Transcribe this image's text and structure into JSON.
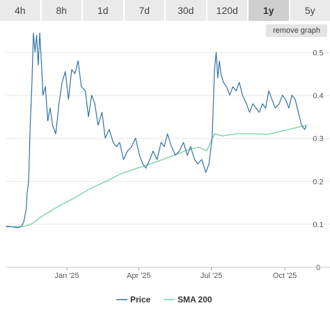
{
  "range_tabs": [
    {
      "label": "4h",
      "active": false
    },
    {
      "label": "8h",
      "active": false
    },
    {
      "label": "1d",
      "active": false
    },
    {
      "label": "7d",
      "active": false
    },
    {
      "label": "30d",
      "active": false
    },
    {
      "label": "120d",
      "active": false
    },
    {
      "label": "1y",
      "active": true
    },
    {
      "label": "5y",
      "active": false
    }
  ],
  "remove_graph_label": "remove graph",
  "colors": {
    "price": "#2f6fa3",
    "sma": "#6fd39a",
    "grid": "#e6e6e6",
    "tab_bg": "#eaeaea",
    "tab_active_bg": "#cfcfcf"
  },
  "chart_data": {
    "type": "line",
    "title": "",
    "xlabel": "",
    "ylabel": "",
    "ylim": [
      0,
      0.5
    ],
    "y_ticks": [
      0,
      0.1,
      0.2,
      0.3,
      0.4,
      0.5
    ],
    "y_tick_labels": [
      "0",
      "0.1",
      "0.2",
      "0.3",
      "0.4",
      "0.5"
    ],
    "x_ticks": [
      {
        "label": "Jan '25",
        "date": "2025-01-01"
      },
      {
        "label": "Apr '25",
        "date": "2025-04-01"
      },
      {
        "label": "Jul '25",
        "date": "2025-07-01"
      },
      {
        "label": "Oct '25",
        "date": "2025-10-01"
      }
    ],
    "xlim": [
      "2024-10-17",
      "2025-10-28"
    ],
    "grid": true,
    "legend_position": "bottom",
    "series": [
      {
        "name": "Price",
        "color": "#2f6fa3",
        "x": [
          "2024-10-17",
          "2024-10-25",
          "2024-11-01",
          "2024-11-05",
          "2024-11-08",
          "2024-11-11",
          "2024-11-12",
          "2024-11-14",
          "2024-11-15",
          "2024-11-16",
          "2024-11-18",
          "2024-11-20",
          "2024-11-22",
          "2024-11-24",
          "2024-11-26",
          "2024-11-28",
          "2024-11-30",
          "2024-12-02",
          "2024-12-05",
          "2024-12-08",
          "2024-12-11",
          "2024-12-14",
          "2024-12-18",
          "2024-12-22",
          "2024-12-26",
          "2024-12-30",
          "2025-01-03",
          "2025-01-07",
          "2025-01-11",
          "2025-01-15",
          "2025-01-19",
          "2025-01-24",
          "2025-01-28",
          "2025-02-01",
          "2025-02-05",
          "2025-02-09",
          "2025-02-14",
          "2025-02-18",
          "2025-02-23",
          "2025-02-28",
          "2025-03-04",
          "2025-03-08",
          "2025-03-13",
          "2025-03-18",
          "2025-03-23",
          "2025-03-28",
          "2025-04-02",
          "2025-04-06",
          "2025-04-10",
          "2025-04-15",
          "2025-04-19",
          "2025-04-24",
          "2025-04-29",
          "2025-05-03",
          "2025-05-07",
          "2025-05-12",
          "2025-05-17",
          "2025-05-22",
          "2025-05-27",
          "2025-06-01",
          "2025-06-05",
          "2025-06-10",
          "2025-06-14",
          "2025-06-19",
          "2025-06-24",
          "2025-06-28",
          "2025-07-02",
          "2025-07-05",
          "2025-07-07",
          "2025-07-09",
          "2025-07-11",
          "2025-07-13",
          "2025-07-16",
          "2025-07-20",
          "2025-07-24",
          "2025-07-28",
          "2025-08-01",
          "2025-08-05",
          "2025-08-09",
          "2025-08-14",
          "2025-08-18",
          "2025-08-22",
          "2025-08-26",
          "2025-08-30",
          "2025-09-03",
          "2025-09-07",
          "2025-09-11",
          "2025-09-15",
          "2025-09-19",
          "2025-09-24",
          "2025-09-28",
          "2025-10-02",
          "2025-10-06",
          "2025-10-10",
          "2025-10-14",
          "2025-10-18",
          "2025-10-22",
          "2025-10-26",
          "2025-10-28"
        ],
        "values": [
          0.095,
          0.093,
          0.091,
          0.095,
          0.105,
          0.135,
          0.17,
          0.2,
          0.26,
          0.33,
          0.42,
          0.545,
          0.5,
          0.54,
          0.47,
          0.545,
          0.48,
          0.4,
          0.42,
          0.34,
          0.37,
          0.33,
          0.31,
          0.38,
          0.43,
          0.455,
          0.39,
          0.46,
          0.45,
          0.48,
          0.42,
          0.41,
          0.35,
          0.4,
          0.38,
          0.33,
          0.36,
          0.3,
          0.32,
          0.29,
          0.28,
          0.29,
          0.25,
          0.27,
          0.28,
          0.3,
          0.26,
          0.24,
          0.23,
          0.25,
          0.27,
          0.25,
          0.29,
          0.28,
          0.31,
          0.28,
          0.26,
          0.27,
          0.29,
          0.26,
          0.28,
          0.25,
          0.24,
          0.25,
          0.22,
          0.24,
          0.3,
          0.46,
          0.5,
          0.44,
          0.48,
          0.45,
          0.43,
          0.42,
          0.4,
          0.42,
          0.41,
          0.43,
          0.4,
          0.38,
          0.36,
          0.38,
          0.37,
          0.36,
          0.38,
          0.37,
          0.41,
          0.39,
          0.37,
          0.38,
          0.4,
          0.39,
          0.37,
          0.4,
          0.39,
          0.36,
          0.33,
          0.32,
          0.33
        ]
      },
      {
        "name": "SMA 200",
        "color": "#6fd39a",
        "x": [
          "2024-10-17",
          "2024-11-08",
          "2024-11-18",
          "2024-12-01",
          "2024-12-20",
          "2025-01-10",
          "2025-02-01",
          "2025-02-20",
          "2025-03-10",
          "2025-04-01",
          "2025-04-25",
          "2025-05-15",
          "2025-06-01",
          "2025-06-15",
          "2025-06-25",
          "2025-07-05",
          "2025-07-15",
          "2025-08-01",
          "2025-08-20",
          "2025-09-10",
          "2025-10-01",
          "2025-10-28"
        ],
        "values": [
          0.093,
          0.094,
          0.1,
          0.118,
          0.14,
          0.16,
          0.184,
          0.2,
          0.217,
          0.231,
          0.246,
          0.26,
          0.272,
          0.279,
          0.27,
          0.31,
          0.305,
          0.31,
          0.31,
          0.309,
          0.318,
          0.33
        ]
      }
    ]
  }
}
